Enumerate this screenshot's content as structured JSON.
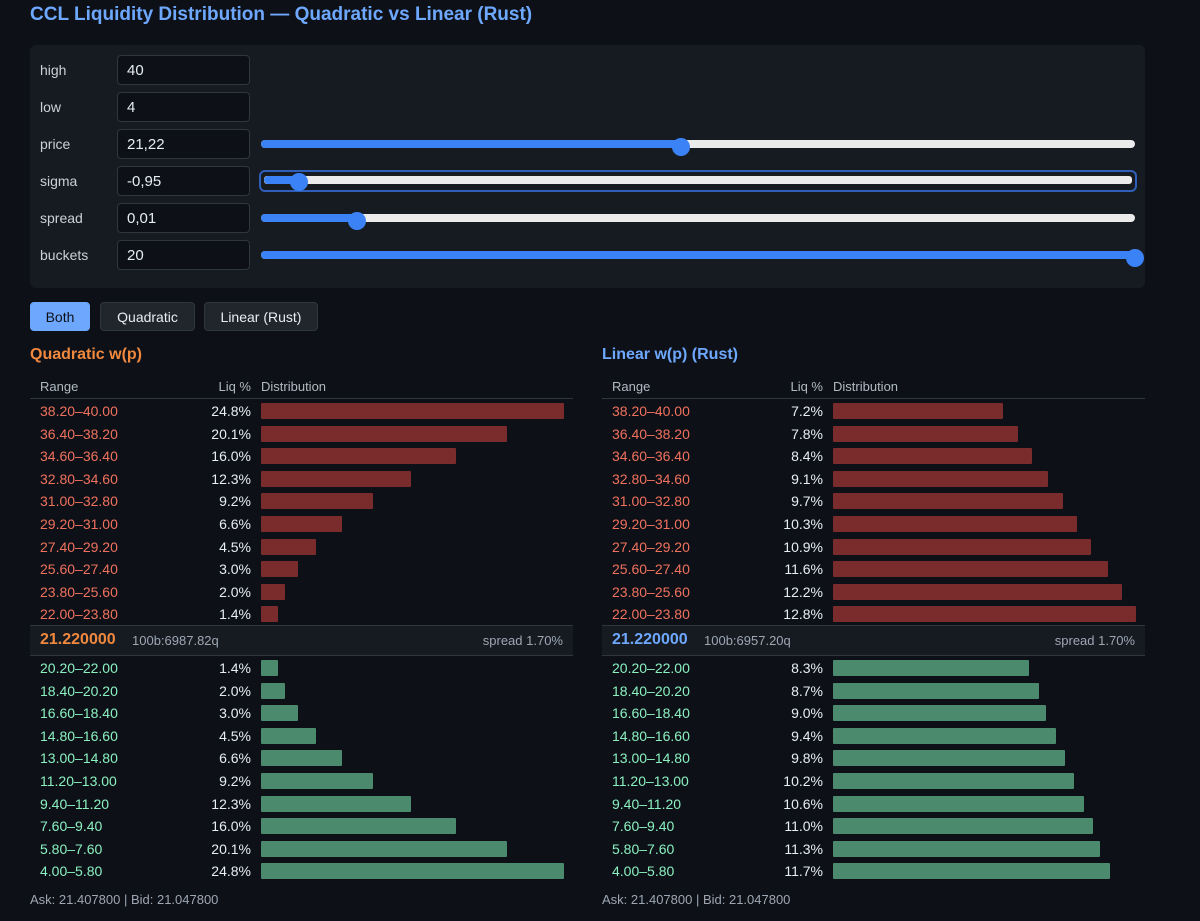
{
  "title": "CCL Liquidity Distribution — Quadratic vs Linear (Rust)",
  "controls": [
    {
      "label": "high",
      "value": "40"
    },
    {
      "label": "low",
      "value": "4"
    },
    {
      "label": "price",
      "value": "21,22",
      "slider_fraction": 0.48
    },
    {
      "label": "sigma",
      "value": "-0,95",
      "slider_fraction": 0.04
    },
    {
      "label": "spread",
      "value": "0,01",
      "slider_fraction": 0.11
    },
    {
      "label": "buckets",
      "value": "20",
      "slider_fraction": 1.0
    }
  ],
  "modes": [
    "Both",
    "Quadratic",
    "Linear (Rust)"
  ],
  "active_mode": "Both",
  "colors": {
    "quadratic": "#f0883e",
    "linear": "#6ea8fe",
    "ask": "#f0715e",
    "bid": "#8bf0c0"
  },
  "panels": {
    "quadratic": {
      "title": "Quadratic w(p)",
      "headers": {
        "range": "Range",
        "pct": "Liq %",
        "dist": "Distribution"
      },
      "asks": [
        {
          "range": "38.20–40.00",
          "pct": "24.8%",
          "value": 24.8
        },
        {
          "range": "36.40–38.20",
          "pct": "20.1%",
          "value": 20.1
        },
        {
          "range": "34.60–36.40",
          "pct": "16.0%",
          "value": 16.0
        },
        {
          "range": "32.80–34.60",
          "pct": "12.3%",
          "value": 12.3
        },
        {
          "range": "31.00–32.80",
          "pct": "9.2%",
          "value": 9.2
        },
        {
          "range": "29.20–31.00",
          "pct": "6.6%",
          "value": 6.6
        },
        {
          "range": "27.40–29.20",
          "pct": "4.5%",
          "value": 4.5
        },
        {
          "range": "25.60–27.40",
          "pct": "3.0%",
          "value": 3.0
        },
        {
          "range": "23.80–25.60",
          "pct": "2.0%",
          "value": 2.0
        },
        {
          "range": "22.00–23.80",
          "pct": "1.4%",
          "value": 1.4
        }
      ],
      "mid": {
        "price": "21.220000",
        "q": "100b:6987.82q",
        "spread": "spread 1.70%"
      },
      "bids": [
        {
          "range": "20.20–22.00",
          "pct": "1.4%",
          "value": 1.4
        },
        {
          "range": "18.40–20.20",
          "pct": "2.0%",
          "value": 2.0
        },
        {
          "range": "16.60–18.40",
          "pct": "3.0%",
          "value": 3.0
        },
        {
          "range": "14.80–16.60",
          "pct": "4.5%",
          "value": 4.5
        },
        {
          "range": "13.00–14.80",
          "pct": "6.6%",
          "value": 6.6
        },
        {
          "range": "11.20–13.00",
          "pct": "9.2%",
          "value": 9.2
        },
        {
          "range": "9.40–11.20",
          "pct": "12.3%",
          "value": 12.3
        },
        {
          "range": "7.60–9.40",
          "pct": "16.0%",
          "value": 16.0
        },
        {
          "range": "5.80–7.60",
          "pct": "20.1%",
          "value": 20.1
        },
        {
          "range": "4.00–5.80",
          "pct": "24.8%",
          "value": 24.8
        }
      ],
      "footer": "Ask: 21.407800 | Bid: 21.047800"
    },
    "linear": {
      "title": "Linear w(p) (Rust)",
      "headers": {
        "range": "Range",
        "pct": "Liq %",
        "dist": "Distribution"
      },
      "asks": [
        {
          "range": "38.20–40.00",
          "pct": "7.2%",
          "value": 7.2
        },
        {
          "range": "36.40–38.20",
          "pct": "7.8%",
          "value": 7.8
        },
        {
          "range": "34.60–36.40",
          "pct": "8.4%",
          "value": 8.4
        },
        {
          "range": "32.80–34.60",
          "pct": "9.1%",
          "value": 9.1
        },
        {
          "range": "31.00–32.80",
          "pct": "9.7%",
          "value": 9.7
        },
        {
          "range": "29.20–31.00",
          "pct": "10.3%",
          "value": 10.3
        },
        {
          "range": "27.40–29.20",
          "pct": "10.9%",
          "value": 10.9
        },
        {
          "range": "25.60–27.40",
          "pct": "11.6%",
          "value": 11.6
        },
        {
          "range": "23.80–25.60",
          "pct": "12.2%",
          "value": 12.2
        },
        {
          "range": "22.00–23.80",
          "pct": "12.8%",
          "value": 12.8
        }
      ],
      "mid": {
        "price": "21.220000",
        "q": "100b:6957.20q",
        "spread": "spread 1.70%"
      },
      "bids": [
        {
          "range": "20.20–22.00",
          "pct": "8.3%",
          "value": 8.3
        },
        {
          "range": "18.40–20.20",
          "pct": "8.7%",
          "value": 8.7
        },
        {
          "range": "16.60–18.40",
          "pct": "9.0%",
          "value": 9.0
        },
        {
          "range": "14.80–16.60",
          "pct": "9.4%",
          "value": 9.4
        },
        {
          "range": "13.00–14.80",
          "pct": "9.8%",
          "value": 9.8
        },
        {
          "range": "11.20–13.00",
          "pct": "10.2%",
          "value": 10.2
        },
        {
          "range": "9.40–11.20",
          "pct": "10.6%",
          "value": 10.6
        },
        {
          "range": "7.60–9.40",
          "pct": "11.0%",
          "value": 11.0
        },
        {
          "range": "5.80–7.60",
          "pct": "11.3%",
          "value": 11.3
        },
        {
          "range": "4.00–5.80",
          "pct": "11.7%",
          "value": 11.7
        }
      ],
      "footer": "Ask: 21.407800 | Bid: 21.047800"
    }
  }
}
